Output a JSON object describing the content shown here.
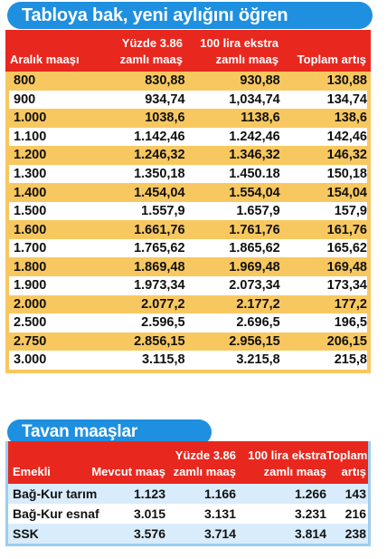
{
  "title_main": "Tabloya bak, yeni aylığını öğren",
  "title_ceiling": "Tavan maaşlar",
  "table1": {
    "headers": {
      "range_line1": "",
      "range_line2": "Aralık maaşı",
      "raise_line1": "Yüzde 3.86",
      "raise_line2": "zamlı maaş",
      "extra_line1": "100 lira ekstra",
      "extra_line2": "zamlı maaş",
      "total_line1": "",
      "total_line2": "Toplam artış"
    },
    "rows": [
      {
        "range": "800",
        "raise": "830,88",
        "extra": "930,88",
        "total": "130,88"
      },
      {
        "range": "900",
        "raise": "934,74",
        "extra": "1,034,74",
        "total": "134,74"
      },
      {
        "range": "1.000",
        "raise": "1038,6",
        "extra": "1138,6",
        "total": "138,6"
      },
      {
        "range": "1.100",
        "raise": "1.142,46",
        "extra": "1.242,46",
        "total": "142,46"
      },
      {
        "range": "1.200",
        "raise": "1.246,32",
        "extra": "1.346,32",
        "total": "146,32"
      },
      {
        "range": "1.300",
        "raise": "1.350,18",
        "extra": "1.450.18",
        "total": "150,18"
      },
      {
        "range": "1.400",
        "raise": "1.454,04",
        "extra": "1.554,04",
        "total": "154,04"
      },
      {
        "range": "1.500",
        "raise": "1.557,9",
        "extra": "1.657,9",
        "total": "157,9"
      },
      {
        "range": "1.600",
        "raise": "1.661,76",
        "extra": "1.761,76",
        "total": "161,76"
      },
      {
        "range": "1.700",
        "raise": "1.765,62",
        "extra": "1.865,62",
        "total": "165,62"
      },
      {
        "range": "1.800",
        "raise": "1.869,48",
        "extra": "1.969,48",
        "total": "169,48"
      },
      {
        "range": "1.900",
        "raise": "1.973,34",
        "extra": "2.073,34",
        "total": "173,34"
      },
      {
        "range": "2.000",
        "raise": "2.077,2",
        "extra": "2.177,2",
        "total": "177,2"
      },
      {
        "range": "2.500",
        "raise": "2.596,5",
        "extra": "2.696,5",
        "total": "196,5"
      },
      {
        "range": "2.750",
        "raise": "2.856,15",
        "extra": "2.956,15",
        "total": "206,15"
      },
      {
        "range": "3.000",
        "raise": "3.115,8",
        "extra": "3.215,8",
        "total": "215,8"
      }
    ]
  },
  "table2": {
    "headers": {
      "type_line1": "",
      "type_line2": "Emekli",
      "current_line1": "",
      "current_line2": "Mevcut maaş",
      "raise_line1": "Yüzde 3.86",
      "raise_line2": "zamlı maaş",
      "extra_line1": "100 lira ekstra",
      "extra_line2": "zamlı maaş",
      "total_line1": "Toplam",
      "total_line2": "artış"
    },
    "rows": [
      {
        "type": "Bağ-Kur tarım",
        "current": "1.123",
        "raise": "1.166",
        "extra": "1.266",
        "total": "143"
      },
      {
        "type": "Bağ-Kur esnaf",
        "current": "3.015",
        "raise": "3.131",
        "extra": "3.231",
        "total": "216"
      },
      {
        "type": "SSK",
        "current": "3.576",
        "raise": "3.714",
        "extra": "3.814",
        "total": "238"
      }
    ]
  }
}
